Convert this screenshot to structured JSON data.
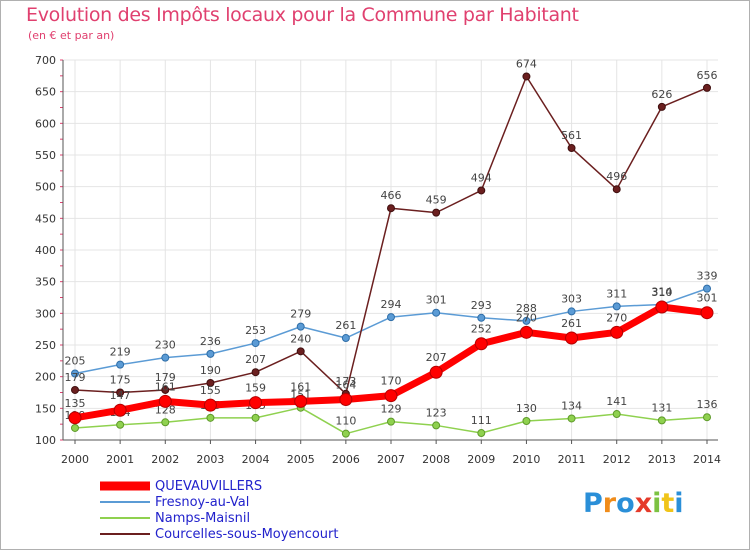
{
  "title": "Evolution des Impôts locaux pour la Commune par Habitant",
  "subtitle": "(en € et par an)",
  "logo": "Proxiti",
  "chart_data": {
    "type": "line",
    "title": "Evolution des Impôts locaux pour la Commune par Habitant",
    "subtitle": "(en € et par an)",
    "x": [
      "2000",
      "2001",
      "2002",
      "2003",
      "2004",
      "2005",
      "2006",
      "2007",
      "2008",
      "2009",
      "2010",
      "2011",
      "2012",
      "2013",
      "2014"
    ],
    "ylim": [
      100,
      700
    ],
    "yticks": [
      100,
      150,
      200,
      250,
      300,
      350,
      400,
      450,
      500,
      550,
      600,
      650,
      700
    ],
    "grid": true,
    "legend_position": "bottom-left",
    "series": [
      {
        "name": "QUEVAUVILLERS",
        "color": "#ff0000",
        "values": [
          135,
          147,
          161,
          155,
          159,
          161,
          164,
          170,
          207,
          252,
          270,
          261,
          270,
          310,
          301
        ]
      },
      {
        "name": "Fresnoy-au-Val",
        "color": "#5b9bd5",
        "values": [
          205,
          219,
          230,
          236,
          253,
          279,
          261,
          294,
          301,
          293,
          288,
          303,
          311,
          314,
          339
        ]
      },
      {
        "name": "Namps-Maisnil",
        "color": "#8fd14f",
        "values": [
          119,
          124,
          128,
          135,
          135,
          151,
          110,
          129,
          123,
          111,
          130,
          134,
          141,
          131,
          136
        ]
      },
      {
        "name": "Courcelles-sous-Moyencourt",
        "color": "#6b1f1f",
        "values": [
          179,
          175,
          179,
          190,
          207,
          240,
          173,
          466,
          459,
          494,
          674,
          561,
          496,
          626,
          656
        ]
      }
    ]
  }
}
